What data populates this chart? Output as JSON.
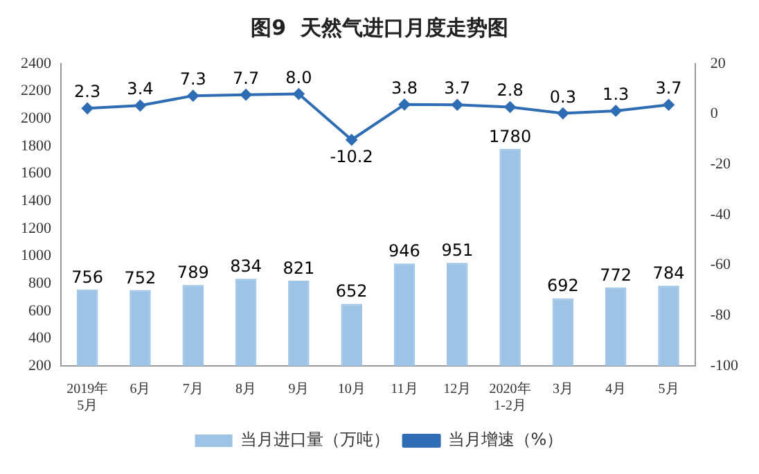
{
  "chart_data": {
    "type": "bar",
    "title": "图9  天然气进口月度走势图",
    "categories": [
      "2019年\n5月",
      "6月",
      "7月",
      "8月",
      "9月",
      "10月",
      "11月",
      "12月",
      "2020年\n1-2月",
      "3月",
      "4月",
      "5月"
    ],
    "series": [
      {
        "name": "当月进口量（万吨）",
        "color": "#9dc3e6",
        "values": [
          756,
          752,
          789,
          834,
          821,
          652,
          946,
          951,
          1780,
          692,
          772,
          784
        ]
      },
      {
        "name": "当月增速（%）",
        "type": "line",
        "axis": "y2",
        "color": "#2e6db4",
        "values": [
          2.3,
          3.4,
          7.3,
          7.7,
          8.0,
          -10.2,
          3.8,
          3.7,
          2.8,
          0.3,
          1.3,
          3.7
        ],
        "value_labels": [
          "2.3",
          "3.4",
          "7.3",
          "7.7",
          "8.0",
          "-10.2",
          "3.8",
          "3.7",
          "2.8",
          "0.3",
          "1.3",
          "3.7"
        ]
      }
    ],
    "ylim": [
      200,
      2400
    ],
    "yticks": [
      200,
      400,
      600,
      800,
      1000,
      1200,
      1400,
      1600,
      1800,
      2000,
      2200,
      2400
    ],
    "y2lim": [
      -100,
      20
    ],
    "y2ticks": [
      -100,
      -80,
      -60,
      -40,
      -20,
      0,
      20
    ],
    "data_labels": true,
    "grid": false,
    "legend": "bottom",
    "marker": "diamond",
    "line_style": "solid"
  }
}
